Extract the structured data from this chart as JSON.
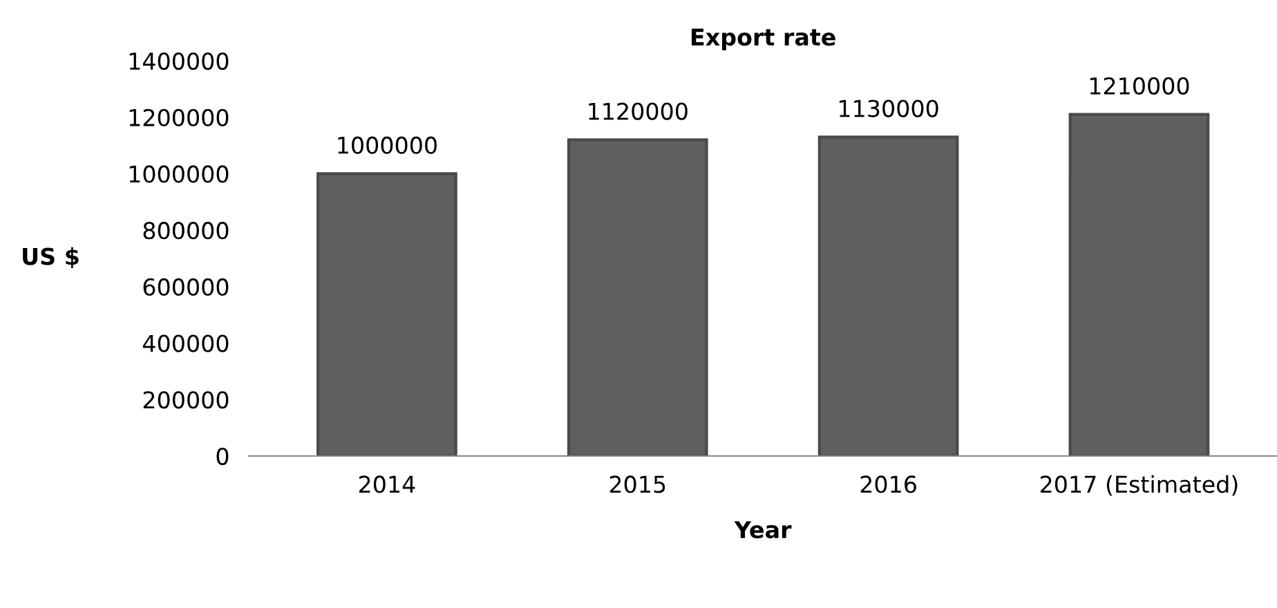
{
  "chart_data": {
    "type": "bar",
    "title": "Export rate",
    "xlabel": "Year",
    "ylabel": "US $",
    "categories": [
      "2014",
      "2015",
      "2016",
      "2017 (Estimated)"
    ],
    "values": [
      1000000,
      1120000,
      1130000,
      1210000
    ],
    "color": "#5f5f5f",
    "ylim": [
      0,
      1400000
    ],
    "yticks": [
      0,
      200000,
      400000,
      600000,
      800000,
      1000000,
      1200000,
      1400000
    ],
    "data_labels": true,
    "grid": false,
    "legend": false
  }
}
